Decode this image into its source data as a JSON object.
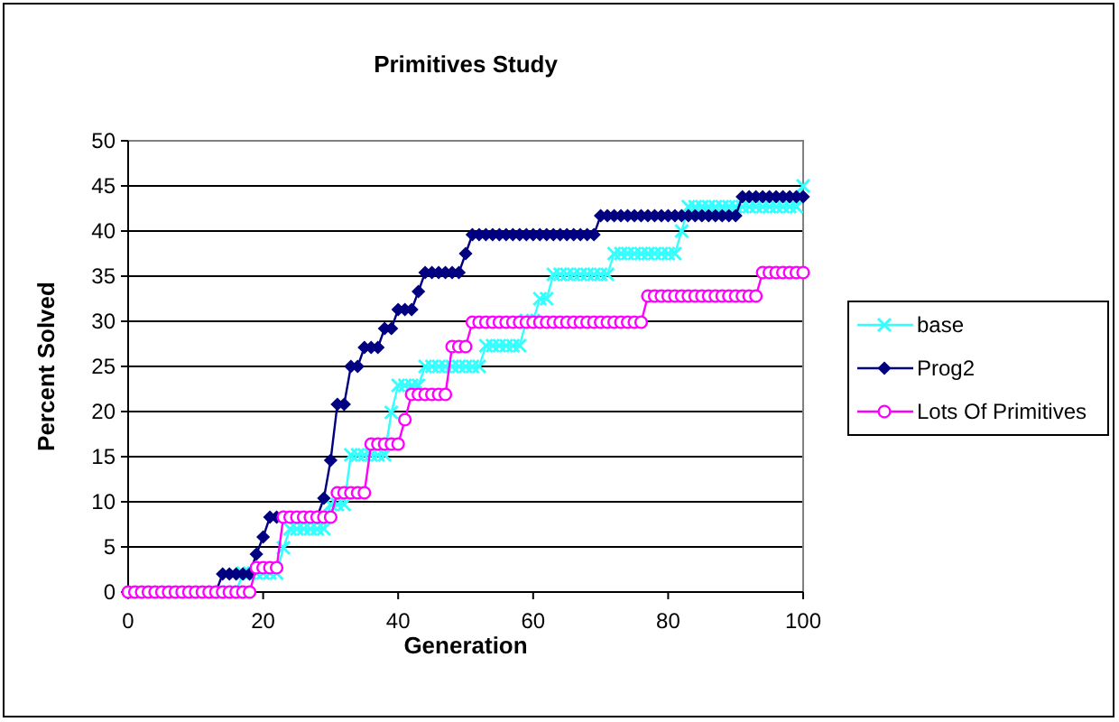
{
  "chart_data": {
    "type": "line",
    "title": "Primitives Study",
    "xlabel": "Generation",
    "ylabel": "Percent Solved",
    "x": [
      0,
      1,
      2,
      3,
      4,
      5,
      6,
      7,
      8,
      9,
      10,
      11,
      12,
      13,
      14,
      15,
      16,
      17,
      18,
      19,
      20,
      21,
      22,
      23,
      24,
      25,
      26,
      27,
      28,
      29,
      30,
      31,
      32,
      33,
      34,
      35,
      36,
      37,
      38,
      39,
      40,
      41,
      42,
      43,
      44,
      45,
      46,
      47,
      48,
      49,
      50,
      51,
      52,
      53,
      54,
      55,
      56,
      57,
      58,
      59,
      60,
      61,
      62,
      63,
      64,
      65,
      66,
      67,
      68,
      69,
      70,
      71,
      72,
      73,
      74,
      75,
      76,
      77,
      78,
      79,
      80,
      81,
      82,
      83,
      84,
      85,
      86,
      87,
      88,
      89,
      90,
      91,
      92,
      93,
      94,
      95,
      96,
      97,
      98,
      99,
      100
    ],
    "series": [
      {
        "name": "base",
        "color": "#33ffff",
        "marker": "cross",
        "values": [
          null,
          null,
          null,
          null,
          null,
          null,
          null,
          null,
          null,
          null,
          null,
          null,
          null,
          null,
          null,
          0,
          0,
          2.1,
          2.1,
          2.1,
          2.1,
          2.1,
          2.1,
          4.9,
          7,
          7,
          7,
          7,
          7,
          7,
          9.7,
          9.7,
          9.7,
          15.2,
          15.2,
          15.2,
          15.2,
          15.2,
          15.2,
          19.9,
          22.9,
          22.9,
          22.9,
          22.9,
          25,
          25,
          25,
          25,
          25,
          25,
          25,
          25,
          25,
          27.3,
          27.3,
          27.3,
          27.3,
          27.3,
          27.3,
          30.1,
          30.1,
          32.5,
          32.5,
          35.2,
          35.2,
          35.2,
          35.2,
          35.2,
          35.2,
          35.2,
          35.2,
          35.2,
          37.5,
          37.5,
          37.5,
          37.5,
          37.5,
          37.5,
          37.5,
          37.5,
          37.5,
          37.5,
          40,
          42.7,
          42.7,
          42.7,
          42.7,
          42.7,
          42.7,
          42.7,
          42.7,
          42.7,
          42.7,
          42.7,
          42.7,
          42.7,
          42.7,
          42.7,
          42.7,
          42.7,
          45
        ]
      },
      {
        "name": "Prog2",
        "color": "#000080",
        "marker": "diamond",
        "values": [
          null,
          null,
          null,
          null,
          null,
          null,
          null,
          null,
          null,
          null,
          null,
          null,
          0,
          0,
          2,
          2,
          2,
          2,
          2,
          4.2,
          6.1,
          8.3,
          8.3,
          8.3,
          null,
          null,
          null,
          null,
          8.3,
          10.4,
          14.6,
          20.8,
          20.8,
          25,
          25,
          27.1,
          27.1,
          27.1,
          29.2,
          29.2,
          31.3,
          31.3,
          31.3,
          33.3,
          35.4,
          35.4,
          35.4,
          35.4,
          35.4,
          35.4,
          37.5,
          39.6,
          39.6,
          39.6,
          39.6,
          39.6,
          39.6,
          39.6,
          39.6,
          39.6,
          39.6,
          39.6,
          39.6,
          39.6,
          39.6,
          39.6,
          39.6,
          39.6,
          39.6,
          39.6,
          41.7,
          41.7,
          41.7,
          41.7,
          41.7,
          41.7,
          41.7,
          41.7,
          41.7,
          41.7,
          41.7,
          41.7,
          41.7,
          41.7,
          41.7,
          41.7,
          41.7,
          41.7,
          41.7,
          41.7,
          41.7,
          43.8,
          43.8,
          43.8,
          43.8,
          43.8,
          43.8,
          43.8,
          43.8,
          43.8,
          43.8
        ]
      },
      {
        "name": "Lots Of Primitives",
        "color": "#ff00ff",
        "marker": "circle",
        "values": [
          0,
          0,
          0,
          0,
          0,
          0,
          0,
          0,
          0,
          0,
          0,
          0,
          0,
          0,
          0,
          0,
          0,
          0,
          0,
          2.7,
          2.7,
          2.7,
          2.7,
          8.3,
          8.3,
          8.3,
          8.3,
          8.3,
          8.3,
          8.3,
          8.3,
          11,
          11,
          11,
          11,
          11,
          16.4,
          16.4,
          16.4,
          16.4,
          16.4,
          19.1,
          21.9,
          21.9,
          21.9,
          21.9,
          21.9,
          21.9,
          27.2,
          27.2,
          27.2,
          29.9,
          29.9,
          29.9,
          29.9,
          29.9,
          29.9,
          29.9,
          29.9,
          29.9,
          29.9,
          29.9,
          29.9,
          29.9,
          29.9,
          29.9,
          29.9,
          29.9,
          29.9,
          29.9,
          29.9,
          29.9,
          29.9,
          29.9,
          29.9,
          29.9,
          29.9,
          32.8,
          32.8,
          32.8,
          32.8,
          32.8,
          32.8,
          32.8,
          32.8,
          32.8,
          32.8,
          32.8,
          32.8,
          32.8,
          32.8,
          32.8,
          32.8,
          32.8,
          35.4,
          35.4,
          35.4,
          35.4,
          35.4,
          35.4,
          35.4
        ]
      }
    ],
    "xlim": [
      0,
      100
    ],
    "xticks": [
      0,
      20,
      40,
      60,
      80,
      100
    ],
    "ylim": [
      0,
      50
    ],
    "yticks": [
      0,
      5,
      10,
      15,
      20,
      25,
      30,
      35,
      40,
      45,
      50
    ],
    "grid": "y",
    "legend": "right",
    "line_style": "solid"
  }
}
